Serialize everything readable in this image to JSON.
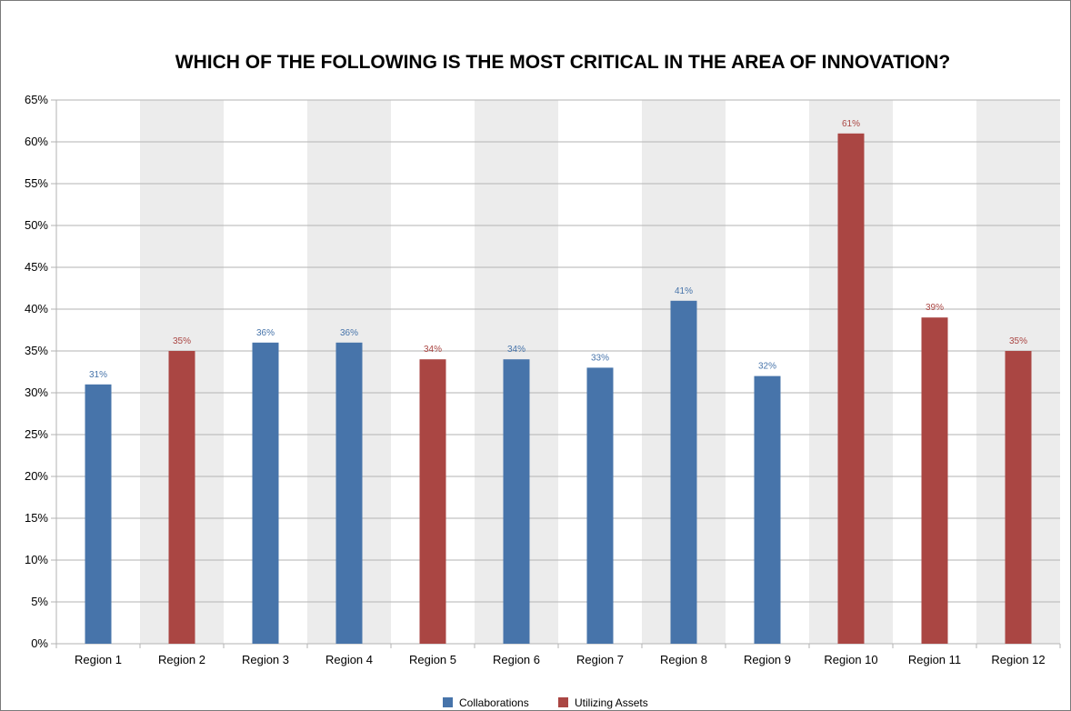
{
  "chart_data": {
    "type": "bar",
    "title": "WHICH OF THE FOLLOWING IS THE MOST CRITICAL IN THE AREA OF INNOVATION?",
    "xlabel": "",
    "ylabel": "",
    "ylim": [
      0,
      65
    ],
    "y_ticks": [
      "0%",
      "5%",
      "10%",
      "15%",
      "20%",
      "25%",
      "30%",
      "35%",
      "40%",
      "45%",
      "50%",
      "55%",
      "60%",
      "65%"
    ],
    "grid": true,
    "legend_position": "bottom",
    "categories": [
      "Region 1",
      "Region 2",
      "Region 3",
      "Region 4",
      "Region 5",
      "Region 6",
      "Region 7",
      "Region 8",
      "Region 9",
      "Region 10",
      "Region 11",
      "Region 12"
    ],
    "values": [
      31,
      35,
      36,
      36,
      34,
      34,
      33,
      41,
      32,
      61,
      39,
      35
    ],
    "value_labels": [
      "31%",
      "35%",
      "36%",
      "36%",
      "34%",
      "34%",
      "33%",
      "41%",
      "32%",
      "61%",
      "39%",
      "35%"
    ],
    "series_assignment": [
      0,
      1,
      0,
      0,
      1,
      0,
      0,
      0,
      0,
      1,
      1,
      1
    ],
    "series": [
      {
        "name": "Collaborations",
        "color": "#4774aa"
      },
      {
        "name": "Utilizing Assets",
        "color": "#aa4643"
      }
    ],
    "band_color": "#ececec",
    "grid_color": "#b3b3b3"
  }
}
